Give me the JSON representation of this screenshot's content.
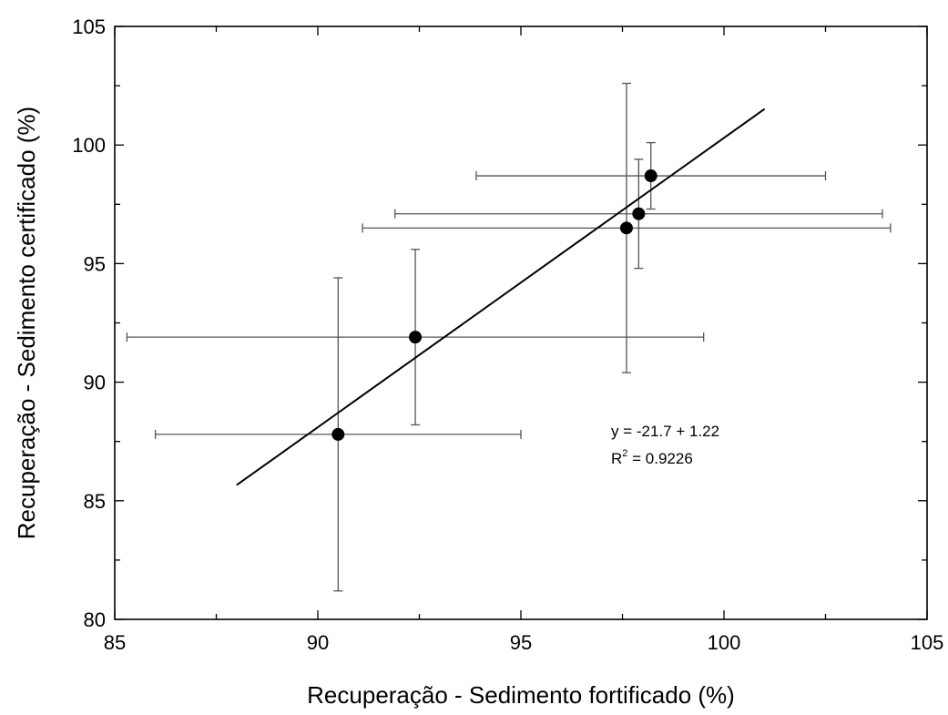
{
  "chart_data": {
    "type": "scatter",
    "title": "",
    "xlabel": "Recuperação - Sedimento fortificado (%)",
    "ylabel": "Recuperação - Sedimento certificado (%)",
    "xlim": [
      85,
      105
    ],
    "ylim": [
      80,
      105
    ],
    "x_ticks": [
      85,
      90,
      95,
      100,
      105
    ],
    "y_ticks": [
      80,
      85,
      90,
      95,
      100,
      105
    ],
    "grid": false,
    "points": [
      {
        "x": 90.5,
        "y": 87.8,
        "x_err_low": 86.0,
        "x_err_high": 95.0,
        "y_err_low": 81.2,
        "y_err_high": 94.4
      },
      {
        "x": 92.4,
        "y": 91.9,
        "x_err_low": 85.3,
        "x_err_high": 99.5,
        "y_err_low": 88.2,
        "y_err_high": 95.6
      },
      {
        "x": 97.6,
        "y": 96.5,
        "x_err_low": 91.1,
        "x_err_high": 104.1,
        "y_err_low": 90.4,
        "y_err_high": 102.6
      },
      {
        "x": 97.9,
        "y": 97.1,
        "x_err_low": 91.9,
        "x_err_high": 103.9,
        "y_err_low": 94.8,
        "y_err_high": 99.4
      },
      {
        "x": 98.2,
        "y": 98.7,
        "x_err_low": 93.9,
        "x_err_high": 102.5,
        "y_err_low": 97.3,
        "y_err_high": 100.1
      }
    ],
    "fit_line": {
      "intercept": -21.7,
      "slope": 1.22,
      "x_range": [
        88.0,
        101.0
      ]
    },
    "annotations": {
      "equation": "y = -21.7 + 1.22",
      "r2_prefix": "R",
      "r2_sup": "2",
      "r2_value": " = 0.9226"
    },
    "colors": {
      "axis": "#000000",
      "marker": "#000000",
      "errorbar": "#555555",
      "fit": "#000000"
    }
  }
}
